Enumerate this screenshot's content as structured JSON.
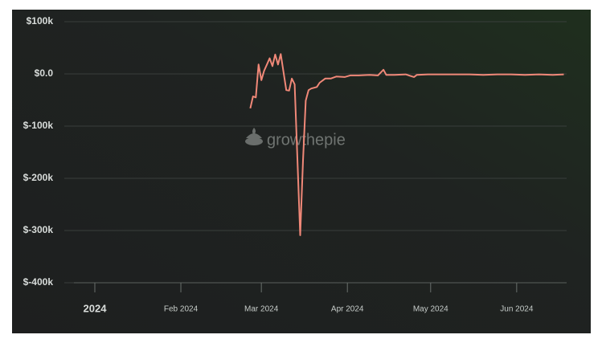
{
  "chart_data": {
    "type": "line",
    "watermark": "growthepie",
    "x": [
      56,
      57,
      58,
      59,
      60,
      61,
      62,
      63,
      64,
      65,
      66,
      67,
      68,
      69,
      70,
      71,
      72,
      73,
      74,
      75,
      76,
      77,
      78,
      80,
      81,
      83,
      85,
      87,
      90,
      92,
      95,
      99,
      102,
      104,
      105,
      108,
      112,
      115,
      116,
      120,
      125,
      130,
      135,
      140,
      145,
      150,
      155,
      160,
      165,
      169
    ],
    "series": [
      {
        "color": "#f08878",
        "values": [
          -66000,
          -43000,
          -45000,
          18000,
          -12000,
          6000,
          18000,
          30000,
          15000,
          37000,
          18000,
          38000,
          3000,
          -31000,
          -32000,
          -9000,
          -20000,
          -166000,
          -309000,
          -166000,
          -51000,
          -31000,
          -28000,
          -25000,
          -17000,
          -9000,
          -9000,
          -5000,
          -6000,
          -3000,
          -3000,
          -2000,
          -3000,
          8000,
          -2000,
          -2000,
          -1000,
          -6000,
          -2000,
          -1000,
          -1000,
          -1000,
          -1000,
          -2000,
          -1000,
          -1000,
          -2000,
          -1000,
          -2000,
          -1000
        ]
      }
    ],
    "xlim": [
      -11,
      170
    ],
    "xticks": [
      {
        "value": 0,
        "label": "2024"
      },
      {
        "value": 31,
        "label": "Feb 2024"
      },
      {
        "value": 60,
        "label": "Mar 2024"
      },
      {
        "value": 91,
        "label": "Apr 2024"
      },
      {
        "value": 121,
        "label": "May 2024"
      },
      {
        "value": 152,
        "label": "Jun 2024"
      }
    ],
    "ylim": [
      -400000,
      100000
    ],
    "yticks": [
      {
        "value": 100000,
        "label": "$100k"
      },
      {
        "value": 0,
        "label": "$0.0"
      },
      {
        "value": -100000,
        "label": "$-100k"
      },
      {
        "value": -200000,
        "label": "$-200k"
      },
      {
        "value": -300000,
        "label": "$-300k"
      },
      {
        "value": -400000,
        "label": "$-400k"
      }
    ],
    "grid": true
  }
}
